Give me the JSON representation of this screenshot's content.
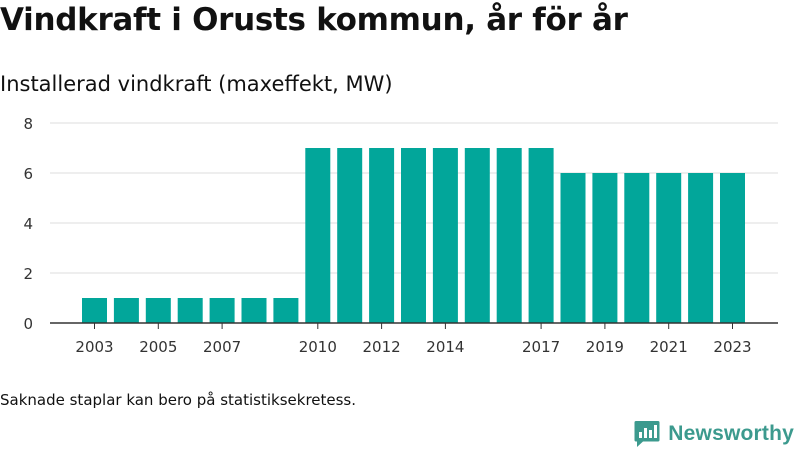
{
  "title": "Vindkraft i Orusts kommun, år för år",
  "subtitle": "Installerad vindkraft (maxeffekt, MW)",
  "footnote": "Saknade staplar kan bero på statistiksekretess.",
  "brand": {
    "name": "Newsworthy",
    "logo_icon": "newsworthy-chart-bubble-icon"
  },
  "colors": {
    "bar": "#02A69A",
    "brand": "#3C9A8E",
    "grid": "#dddddd",
    "axis": "#333333",
    "text": "#111111"
  },
  "chart_data": {
    "type": "bar",
    "categories": [
      "2003",
      "2004",
      "2005",
      "2006",
      "2007",
      "2008",
      "2009",
      "2010",
      "2011",
      "2012",
      "2013",
      "2014",
      "2015",
      "2016",
      "2017",
      "2018",
      "2019",
      "2020",
      "2021",
      "2022",
      "2023"
    ],
    "values": [
      1,
      1,
      1,
      1,
      1,
      1,
      1,
      7,
      7,
      7,
      7,
      7,
      7,
      7,
      7,
      6,
      6,
      6,
      6,
      6,
      6
    ],
    "x_tick_labels": [
      "2003",
      "2005",
      "2007",
      "2010",
      "2012",
      "2014",
      "2017",
      "2019",
      "2021",
      "2023"
    ],
    "y_ticks": [
      0,
      2,
      4,
      6,
      8
    ],
    "ylim": [
      0,
      8
    ],
    "title": "Installerad vindkraft (maxeffekt, MW)",
    "xlabel": "",
    "ylabel": "",
    "grid": true,
    "legend": "none"
  }
}
